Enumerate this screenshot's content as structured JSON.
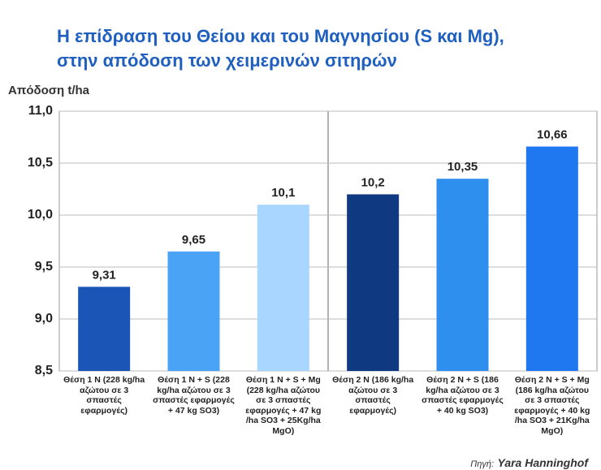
{
  "chart_data": {
    "type": "bar",
    "title": [
      "Η επίδραση του Θείου και του Μαγνησίου (S και Mg),",
      "στην απόδοση των χειμερινών σιτηρών"
    ],
    "y_label": "Απόδοση t/ha",
    "categories": [
      "Θέση 1 N (228 kg/ha αζώτου σε 3 σπαστές εφαρμογές)",
      "Θέση 1 N + S (228 kg/ha αζώτου σε 3 σπαστές εφαρμογές + 47 kg SO3)",
      "Θέση 1 N + S + Mg (228 kg/ha αζώτου σε 3 σπαστές εφαρμογές + 47 kg /ha SO3 + 25Kg/ha MgO)",
      "Θέση 2 N (186 kg/ha αζώτου σε 3 σπαστές εφαρμογές)",
      "Θέση 2 N + S (186 kg/ha αζώτου σε 3 σπαστές εφαρμογές + 40 kg SO3)",
      "Θέση 2 N + S + Mg (186 kg/ha αζώτου σε 3 σπαστές εφαρμογές + 40 kg /ha SO3 + 21Kg/ha MgO)"
    ],
    "values": [
      9.31,
      9.65,
      10.1,
      10.2,
      10.35,
      10.66
    ],
    "value_labels": [
      "9,31",
      "9,65",
      "10,1",
      "10,2",
      "10,35",
      "10,66"
    ],
    "colors": [
      "#1b56b6",
      "#4aa3f5",
      "#a9d6ff",
      "#0f3a82",
      "#2f8fef",
      "#1f78f0"
    ],
    "ylim": [
      8.5,
      11.0
    ],
    "yticks": [
      {
        "value": 8.5,
        "label": "8,5"
      },
      {
        "value": 9.0,
        "label": "9,0"
      },
      {
        "value": 9.5,
        "label": "9,5"
      },
      {
        "value": 10.0,
        "label": "10,0"
      },
      {
        "value": 10.5,
        "label": "10,5"
      },
      {
        "value": 11.0,
        "label": "11,0"
      }
    ],
    "grid": true,
    "source_label": "Πηγή:",
    "source": "Yara Hanninghof"
  }
}
